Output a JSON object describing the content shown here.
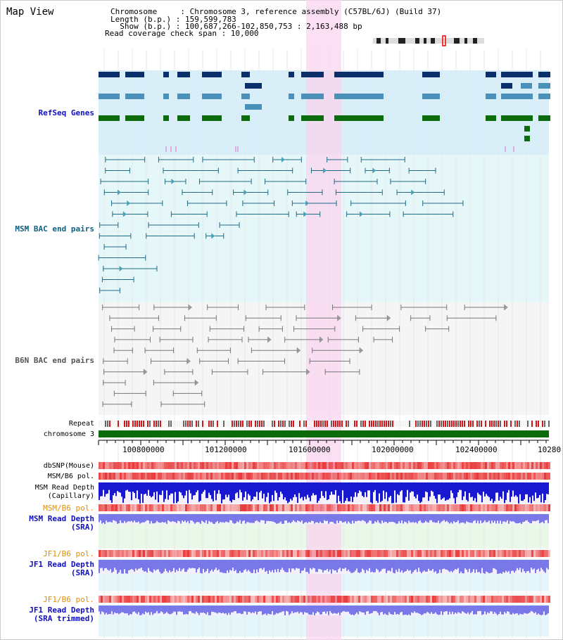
{
  "window": {
    "title": "Map View"
  },
  "header": {
    "chromosome_line": "Chromosome     : Chromosome 3, reference assembly (C57BL/6J) (Build 37)",
    "length_line": "Length (b.p.) : 159,599,783",
    "show_line": "  Show (b.p.) : 100,687,266-102,850,753 : 2,163,488 bp",
    "coverage_line": "Read coverage check span : 10,000"
  },
  "tracks": {
    "refseq": "RefSeq Genes",
    "msm_bac": "MSM BAC end pairs",
    "b6n_bac": "B6N BAC end pairs",
    "repeat": "Repeat",
    "chromosome": "chromosome 3",
    "dbsnp": "dbSNP(Mouse)",
    "msm_b6_pol_1": "MSM/B6 pol.",
    "msm_read_depth_cap": [
      "MSM Read Depth",
      "(Capillary)"
    ],
    "msm_b6_pol_2": "MSM/B6 pol.",
    "msm_read_depth_sra": [
      "MSM Read Depth",
      "(SRA)"
    ],
    "jf1_b6_pol_1": "JF1/B6 pol.",
    "jf1_read_depth_sra": [
      "JF1 Read Depth",
      "(SRA)"
    ],
    "jf1_b6_pol_2": "JF1/B6 pol.",
    "jf1_read_depth_trim": [
      "JF1 Read Depth",
      "(SRA trimmed)"
    ]
  },
  "axis": {
    "ticks": [
      "100800000",
      "101200000",
      "101600000",
      "102000000",
      "102400000",
      "10280"
    ]
  },
  "colors": {
    "highlight": "#f9d4ef",
    "refseq_bg": "#d8eef8",
    "msm_bg": "#e6f7f9",
    "b6n_bg": "#f5f5f5",
    "gene_dark": "#0a2f6b",
    "gene_light": "#4a90b8",
    "gene_green": "#0c6c0c",
    "bac_msm": "#1f6b86",
    "bac_b6n": "#777777",
    "depth_blue": "#1818d0",
    "depth_light": "#7878e8",
    "snp_red": "#e83838"
  }
}
